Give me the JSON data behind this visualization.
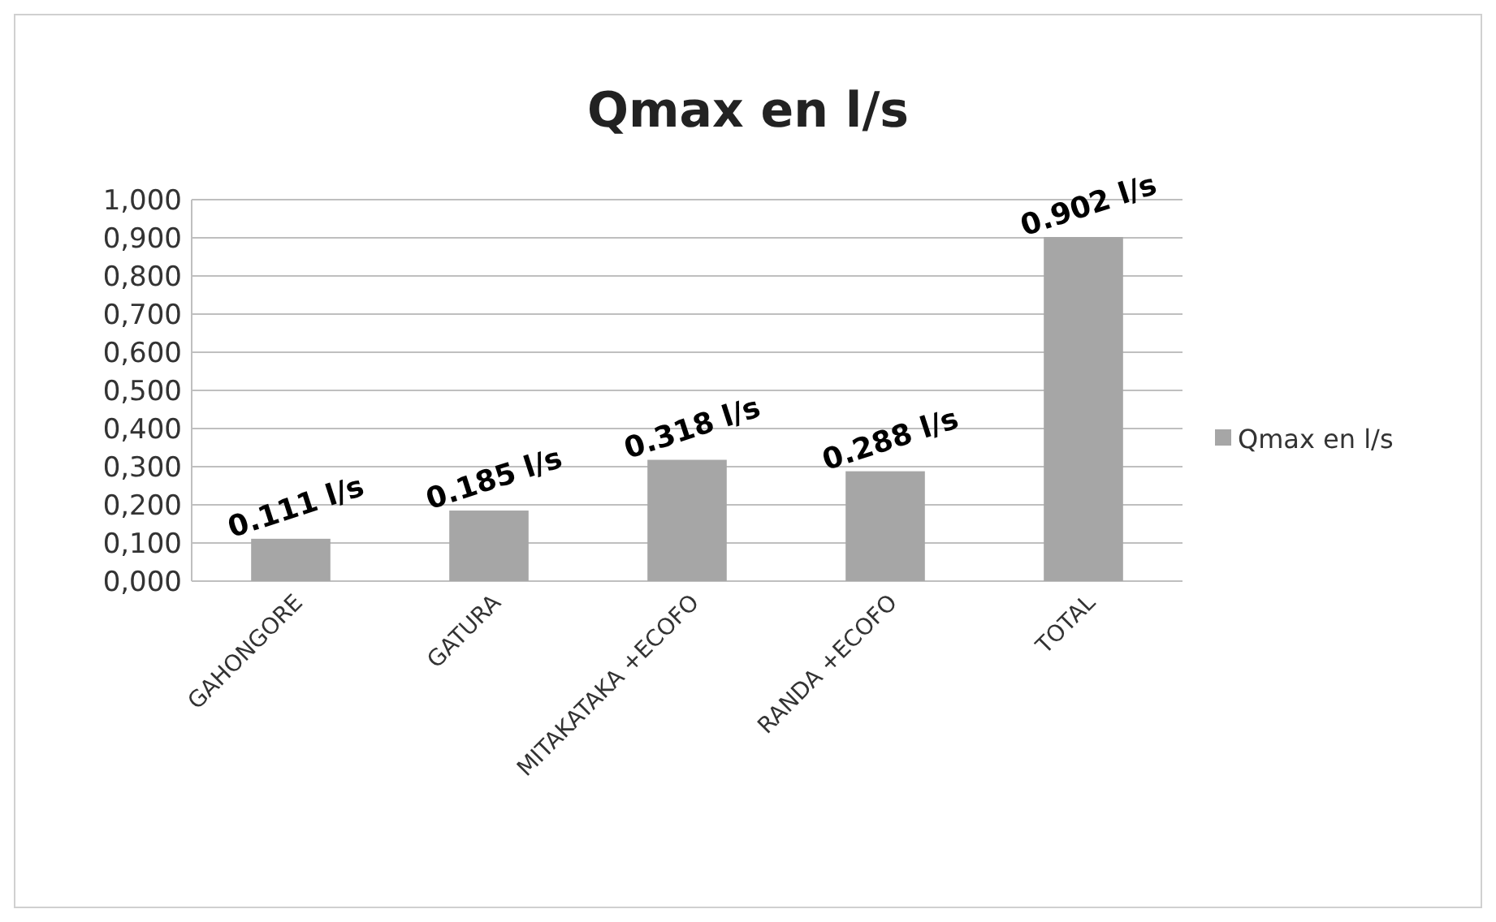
{
  "chart_data": {
    "type": "bar",
    "title": "Qmax en l/s",
    "categories": [
      "GAHONGORE",
      "GATURA",
      "MITAKATAKA +ECOFO",
      "RANDA +ECOFO",
      "TOTAL"
    ],
    "series": [
      {
        "name": "Qmax en l/s",
        "color": "#a6a6a6",
        "values": [
          0.111,
          0.185,
          0.318,
          0.288,
          0.902
        ]
      }
    ],
    "value_labels": [
      "0.111 l/s",
      "0.185 l/s",
      "0.318 l/s",
      "0.288 l/s",
      "0.902 l/s"
    ],
    "ylim": [
      0,
      1
    ],
    "yticks": [
      {
        "value": 0,
        "label": "0,000"
      },
      {
        "value": 0.1,
        "label": "0,100"
      },
      {
        "value": 0.2,
        "label": "0,200"
      },
      {
        "value": 0.3,
        "label": "0,300"
      },
      {
        "value": 0.4,
        "label": "0,400"
      },
      {
        "value": 0.5,
        "label": "0,500"
      },
      {
        "value": 0.6,
        "label": "0,600"
      },
      {
        "value": 0.7,
        "label": "0,700"
      },
      {
        "value": 0.8,
        "label": "0,800"
      },
      {
        "value": 0.9,
        "label": "0,900"
      },
      {
        "value": 1,
        "label": "1,000"
      }
    ],
    "grid": "y",
    "legend": "right"
  }
}
